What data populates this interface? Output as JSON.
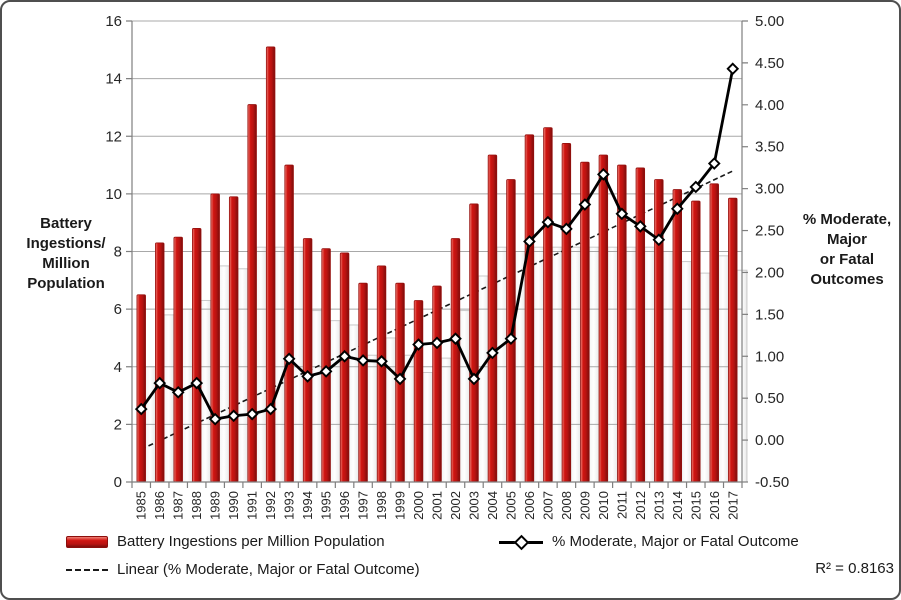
{
  "figure": {
    "left_axis_title_lines": [
      "Battery",
      "Ingestions/",
      "Million",
      "Population"
    ],
    "right_axis_title_lines": [
      "% Moderate,",
      "Major",
      "or Fatal",
      "Outcomes"
    ],
    "r_squared_label": "R² = 0.8163"
  },
  "legend": {
    "bars_label": "Battery Ingestions per Million Population",
    "line_label": "% Moderate, Major or Fatal Outcome",
    "trend_label": "Linear (% Moderate, Major or Fatal Outcome)"
  },
  "colors": {
    "bar_red": "#c00000",
    "bar_red_dark": "#7c0d0b",
    "bar_red_light": "#ef8177",
    "line_black": "#000000",
    "gridline_gray": "#a8a8a8",
    "axis_gray": "#7f7f7f",
    "text_dark": "#262626"
  },
  "chart_data": {
    "type": "bar",
    "subtype": "bar+line combo with linear trendline",
    "categories": [
      "1985",
      "1986",
      "1987",
      "1988",
      "1989",
      "1990",
      "1991",
      "1992",
      "1993",
      "1994",
      "1995",
      "1996",
      "1997",
      "1998",
      "1999",
      "2000",
      "2001",
      "2002",
      "2003",
      "2004",
      "2005",
      "2006",
      "2007",
      "2008",
      "2009",
      "2010",
      "2011",
      "2012",
      "2013",
      "2014",
      "2015",
      "2016",
      "2017"
    ],
    "series": [
      {
        "name": "Battery Ingestions per Million Population",
        "type": "bar",
        "axis": "left",
        "color": "#c00000",
        "values": [
          6.5,
          8.3,
          8.5,
          8.8,
          10.0,
          9.9,
          13.1,
          15.1,
          11.0,
          8.45,
          8.1,
          7.95,
          6.9,
          7.5,
          6.9,
          6.3,
          6.8,
          8.45,
          9.65,
          11.35,
          10.5,
          12.05,
          12.3,
          11.75,
          11.1,
          11.35,
          11.0,
          10.9,
          10.5,
          10.15,
          9.75,
          10.35,
          9.85
        ]
      },
      {
        "name": "% Moderate, Major or Fatal Outcome",
        "type": "line",
        "axis": "right",
        "color": "#000000",
        "marker": "diamond",
        "values": [
          0.37,
          0.68,
          0.57,
          0.68,
          0.25,
          0.29,
          0.31,
          0.37,
          0.97,
          0.76,
          0.82,
          1.0,
          0.95,
          0.94,
          0.73,
          1.14,
          1.16,
          1.21,
          0.73,
          1.04,
          1.21,
          2.37,
          2.6,
          2.52,
          2.81,
          3.17,
          2.7,
          2.55,
          2.39,
          2.76,
          3.02,
          3.3,
          4.43
        ]
      }
    ],
    "trendline": {
      "name": "Linear (% Moderate, Major or Fatal Outcome)",
      "axis": "right",
      "style": "dashed",
      "start_value": -0.11,
      "end_value": 3.21,
      "r_squared": 0.8163
    },
    "left_axis": {
      "min": 0,
      "max": 16,
      "step": 2,
      "tick_labels": [
        "16",
        "14",
        "12",
        "10",
        "8",
        "6",
        "4",
        "2",
        "0"
      ]
    },
    "right_axis": {
      "min": -0.5,
      "max": 5.0,
      "step": 0.5,
      "tick_labels": [
        "5.00",
        "4.50",
        "4.00",
        "3.50",
        "3.00",
        "2.50",
        "2.00",
        "1.50",
        "1.00",
        "0.50",
        "0.00",
        "-0.50"
      ]
    },
    "grid": "horizontal major gridlines (left axis, every 2)",
    "legend_position": "bottom"
  }
}
